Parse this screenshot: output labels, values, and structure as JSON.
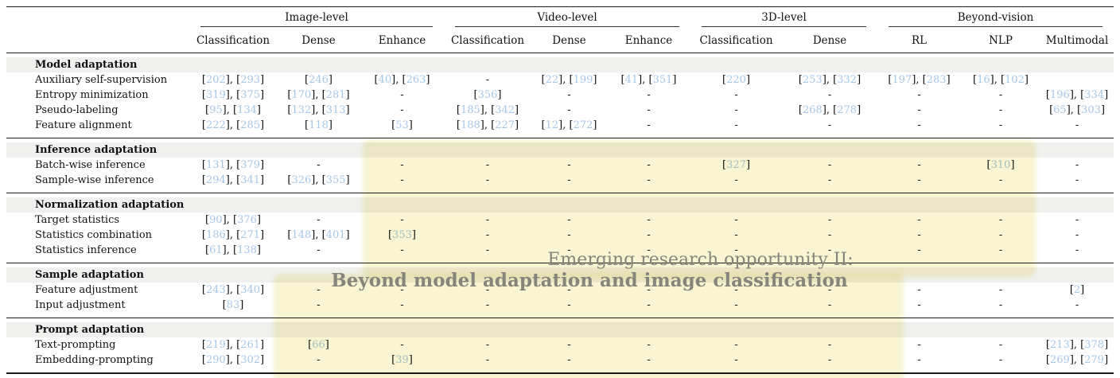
{
  "overlay": {
    "caption_line1": "Emerging research opportunity II:",
    "caption_line2": "Beyond model adaptation and image classification",
    "highlight_color": "#f2e9a0",
    "caption_color": "#87857b"
  },
  "colors": {
    "citation_blue": "#a7c7e7",
    "section_band_gray": "#f0f0ef",
    "rule_dark": "#1c1c1c"
  },
  "table": {
    "column_groups": [
      {
        "label": "Image-level",
        "span": 3
      },
      {
        "label": "Video-level",
        "span": 3
      },
      {
        "label": "3D-level",
        "span": 2
      },
      {
        "label": "Beyond-vision",
        "span": 3
      }
    ],
    "columns": [
      "Classification",
      "Dense",
      "Enhance",
      "Classification",
      "Dense",
      "Enhance",
      "Classification",
      "Dense",
      "RL",
      "NLP",
      "Multimodal"
    ],
    "sections": [
      {
        "header": "Model adaptation",
        "rows": [
          {
            "label": "Auxiliary self-supervision",
            "cells": [
              [
                "202",
                "293"
              ],
              [
                "246"
              ],
              [
                "40",
                "263"
              ],
              "-",
              [
                "22",
                "199"
              ],
              [
                "41",
                "351"
              ],
              [
                "220"
              ],
              [
                "253",
                "332"
              ],
              [
                "197",
                "283"
              ],
              [
                "16",
                "102"
              ],
              ""
            ]
          },
          {
            "label": "Entropy minimization",
            "cells": [
              [
                "319",
                "375"
              ],
              [
                "170",
                "281"
              ],
              "-",
              [
                "356"
              ],
              "-",
              "-",
              "-",
              "-",
              "-",
              "-",
              [
                "196",
                "334"
              ]
            ]
          },
          {
            "label": "Pseudo-labeling",
            "cells": [
              [
                "95",
                "134"
              ],
              [
                "132",
                "313"
              ],
              "-",
              [
                "185",
                "342"
              ],
              "-",
              "-",
              "-",
              [
                "268",
                "278"
              ],
              "-",
              "-",
              [
                "65",
                "303"
              ]
            ]
          },
          {
            "label": "Feature alignment",
            "cells": [
              [
                "222",
                "285"
              ],
              [
                "118"
              ],
              [
                "53"
              ],
              [
                "188",
                "227"
              ],
              [
                "12",
                "272"
              ],
              "-",
              "-",
              "-",
              "-",
              "-",
              "-"
            ]
          }
        ]
      },
      {
        "header": "Inference adaptation",
        "rows": [
          {
            "label": "Batch-wise inference",
            "cells": [
              [
                "131",
                "379"
              ],
              "-",
              "-",
              "-",
              "-",
              "-",
              [
                "327"
              ],
              "-",
              "-",
              [
                "310"
              ],
              "-"
            ]
          },
          {
            "label": "Sample-wise inference",
            "cells": [
              [
                "294",
                "341"
              ],
              [
                "326",
                "355"
              ],
              "-",
              "-",
              "-",
              "-",
              "-",
              "-",
              "-",
              "-",
              "-"
            ]
          }
        ]
      },
      {
        "header": "Normalization adaptation",
        "rows": [
          {
            "label": "Target statistics",
            "cells": [
              [
                "90",
                "376"
              ],
              "-",
              "-",
              "-",
              "-",
              "-",
              "-",
              "-",
              "-",
              "-",
              "-"
            ]
          },
          {
            "label": "Statistics combination",
            "cells": [
              [
                "186",
                "271"
              ],
              [
                "148",
                "401"
              ],
              [
                "353"
              ],
              "-",
              "-",
              "-",
              "-",
              "-",
              "-",
              "-",
              "-"
            ]
          },
          {
            "label": "Statistics inference",
            "cells": [
              [
                "61",
                "138"
              ],
              "-",
              "-",
              "-",
              "-",
              "-",
              "-",
              "-",
              "-",
              "-",
              "-"
            ]
          }
        ]
      },
      {
        "header": "Sample adaptation",
        "rows": [
          {
            "label": "Feature adjustment",
            "cells": [
              [
                "243",
                "340"
              ],
              "-",
              "-",
              "-",
              "-",
              "-",
              "-",
              "-",
              "-",
              "-",
              [
                "2"
              ]
            ]
          },
          {
            "label": "Input adjustment",
            "cells": [
              [
                "83"
              ],
              "-",
              "-",
              "-",
              "-",
              "-",
              "-",
              "-",
              "-",
              "-",
              "-"
            ]
          }
        ]
      },
      {
        "header": "Prompt adaptation",
        "rows": [
          {
            "label": "Text-prompting",
            "cells": [
              [
                "219",
                "261"
              ],
              [
                "66"
              ],
              "-",
              "-",
              "-",
              "-",
              "-",
              "-",
              "-",
              "-",
              [
                "213",
                "378"
              ]
            ]
          },
          {
            "label": "Embedding-prompting",
            "cells": [
              [
                "290",
                "302"
              ],
              "-",
              [
                "39"
              ],
              "-",
              "-",
              "-",
              "-",
              "-",
              "-",
              "-",
              [
                "269",
                "279"
              ]
            ]
          }
        ]
      }
    ]
  }
}
